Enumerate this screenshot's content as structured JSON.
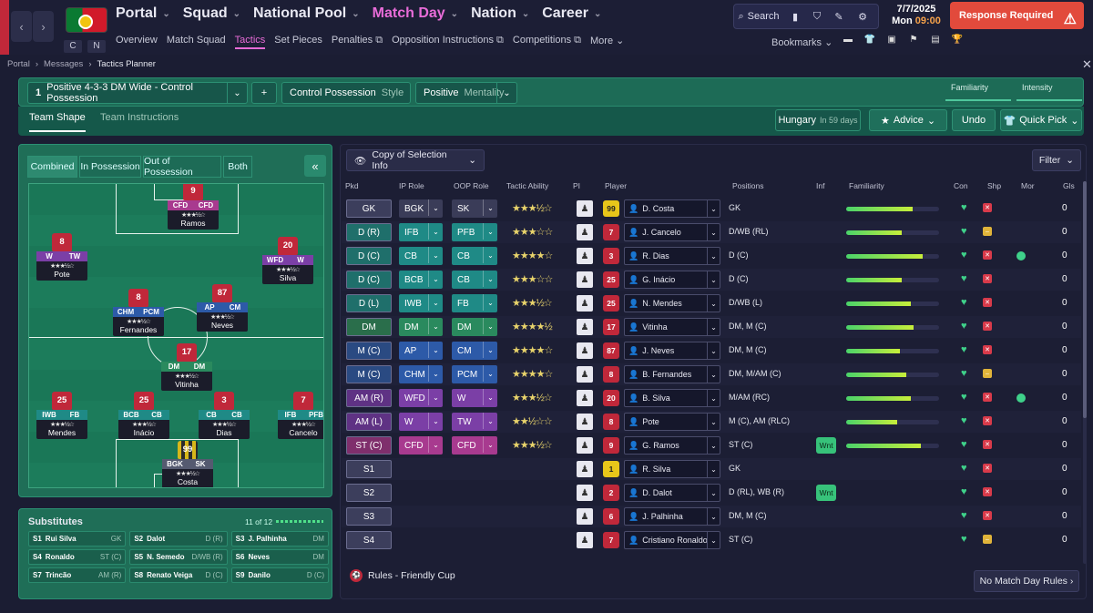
{
  "topbar": {
    "nav": [
      "Portal",
      "Squad",
      "National Pool",
      "Match Day",
      "Nation",
      "Career"
    ],
    "active_nav": "Match Day",
    "sub": [
      "Overview",
      "Match Squad",
      "Tactics",
      "Set Pieces",
      "Penalties",
      "Opposition Instructions",
      "Competitions",
      "More"
    ],
    "active_sub": "Tactics",
    "search": "Search",
    "date": "7/7/2025",
    "day": "Mon",
    "time": "09:00",
    "response": "Response Required",
    "bookmarks": "Bookmarks",
    "c": "C",
    "n": "N"
  },
  "breadcrumb": [
    "Portal",
    "Messages",
    "Tactics Planner"
  ],
  "tactic": {
    "num": "1",
    "name": "Positive 4-3-3 DM Wide - Control Possession",
    "style": "Control Possession",
    "style_lbl": "Style",
    "mentality": "Positive",
    "mentality_lbl": "Mentality",
    "familiarity": "Familiarity",
    "intensity": "Intensity",
    "plus": "+"
  },
  "tabs": {
    "shape": "Team Shape",
    "instructions": "Team Instructions"
  },
  "next": {
    "opp": "Hungary",
    "when": "In 59 days"
  },
  "buttons": {
    "advice": "Advice",
    "undo": "Undo",
    "quickpick": "Quick Pick",
    "filter": "Filter",
    "copy": "Copy of Selection Info",
    "nomd": "No Match Day Rules"
  },
  "pitch_tabs": [
    "Combined",
    "In Possession",
    "Out of Possession",
    "Both"
  ],
  "pitch_players": [
    {
      "num": "9",
      "r1": "CFD",
      "r2": "CFD",
      "name": "Ramos",
      "c1": "#a83a8f",
      "c2": "#a83a8f"
    },
    {
      "num": "8",
      "r1": "W",
      "r2": "TW",
      "name": "Pote",
      "c1": "#7b3fa6",
      "c2": "#7b3fa6"
    },
    {
      "num": "20",
      "r1": "WFD",
      "r2": "W",
      "name": "Silva",
      "c1": "#7b3fa6",
      "c2": "#7b3fa6"
    },
    {
      "num": "8",
      "r1": "CHM",
      "r2": "PCM",
      "name": "Fernandes",
      "c1": "#2d5aa8",
      "c2": "#2d5aa8"
    },
    {
      "num": "87",
      "r1": "AP",
      "r2": "CM",
      "name": "Neves",
      "c1": "#2d5aa8",
      "c2": "#2d5aa8"
    },
    {
      "num": "17",
      "r1": "DM",
      "r2": "DM",
      "name": "Vitinha",
      "c1": "#2a8a5e",
      "c2": "#2a8a5e"
    },
    {
      "num": "25",
      "r1": "IWB",
      "r2": "FB",
      "name": "Mendes",
      "c1": "#1f8a86",
      "c2": "#1f8a86"
    },
    {
      "num": "25",
      "r1": "BCB",
      "r2": "CB",
      "name": "Inácio",
      "c1": "#1f8a86",
      "c2": "#1f8a86"
    },
    {
      "num": "3",
      "r1": "CB",
      "r2": "CB",
      "name": "Dias",
      "c1": "#1f8a86",
      "c2": "#1f8a86"
    },
    {
      "num": "7",
      "r1": "IFB",
      "r2": "PFB",
      "name": "Cancelo",
      "c1": "#1f8a86",
      "c2": "#1f8a86"
    },
    {
      "num": "99",
      "r1": "BGK",
      "r2": "SK",
      "name": "Costa",
      "c1": "#555a70",
      "c2": "#555a70"
    }
  ],
  "subs": {
    "title": "Substitutes",
    "count": "11 of 12",
    "rows": [
      [
        {
          "n": "S1",
          "p": "Rui Silva",
          "pos": "GK"
        },
        {
          "n": "S2",
          "p": "Dalot",
          "pos": "D (R)"
        },
        {
          "n": "S3",
          "p": "J. Palhinha",
          "pos": "DM"
        }
      ],
      [
        {
          "n": "S4",
          "p": "Ronaldo",
          "pos": "ST (C)"
        },
        {
          "n": "S5",
          "p": "N. Semedo",
          "pos": "D/WB (R)"
        },
        {
          "n": "S6",
          "p": "Neves",
          "pos": "DM"
        }
      ],
      [
        {
          "n": "S7",
          "p": "Trincão",
          "pos": "AM (R)"
        },
        {
          "n": "S8",
          "p": "Renato Veiga",
          "pos": "D (C)"
        },
        {
          "n": "S9",
          "p": "Danilo",
          "pos": "D (C)"
        }
      ]
    ]
  },
  "columns": [
    "Pkd",
    "IP Role",
    "OOP Role",
    "Tactic Ability",
    "PI",
    "Player",
    "Positions",
    "Inf",
    "Familiarity",
    "Con",
    "Shp",
    "Mor",
    "Gls"
  ],
  "rows": [
    {
      "pkd": "GK",
      "ip": "BGK",
      "oop": "SK",
      "stars": "★★★½☆",
      "num": "99",
      "gk": true,
      "player": "D. Costa",
      "pos": "GK",
      "fam": 0.72,
      "shp": "x",
      "gls": "0",
      "color": "#3c3e5c",
      "ipc": "#3a3c58",
      "oopc": "#3a3c58"
    },
    {
      "pkd": "D (R)",
      "ip": "IFB",
      "oop": "PFB",
      "stars": "★★★☆☆",
      "num": "7",
      "player": "J. Cancelo",
      "pos": "D/WB (RL)",
      "fam": 0.6,
      "shp": "-",
      "gls": "0",
      "color": "#1f6f6b",
      "ipc": "#1f8a86",
      "oopc": "#1f8a86"
    },
    {
      "pkd": "D (C)",
      "ip": "CB",
      "oop": "CB",
      "stars": "★★★★☆",
      "num": "3",
      "player": "R. Dias",
      "pos": "D (C)",
      "fam": 0.82,
      "shp": "x",
      "mor": true,
      "gls": "0",
      "color": "#1f6f6b",
      "ipc": "#1f8a86",
      "oopc": "#1f8a86"
    },
    {
      "pkd": "D (C)",
      "ip": "BCB",
      "oop": "CB",
      "stars": "★★★☆☆",
      "num": "25",
      "player": "G. Inácio",
      "pos": "D (C)",
      "fam": 0.6,
      "shp": "x",
      "gls": "0",
      "color": "#1f6f6b",
      "ipc": "#1f8a86",
      "oopc": "#1f8a86"
    },
    {
      "pkd": "D (L)",
      "ip": "IWB",
      "oop": "FB",
      "stars": "★★★½☆",
      "num": "25",
      "player": "N. Mendes",
      "pos": "D/WB (L)",
      "fam": 0.7,
      "shp": "x",
      "gls": "0",
      "color": "#1f6f6b",
      "ipc": "#1f8a86",
      "oopc": "#1f8a86"
    },
    {
      "pkd": "DM",
      "ip": "DM",
      "oop": "DM",
      "stars": "★★★★½",
      "num": "17",
      "player": "Vitinha",
      "pos": "DM, M (C)",
      "fam": 0.73,
      "shp": "x",
      "gls": "0",
      "color": "#2a6e4b",
      "ipc": "#2a8a5e",
      "oopc": "#2a8a5e"
    },
    {
      "pkd": "M (C)",
      "ip": "AP",
      "oop": "CM",
      "stars": "★★★★☆",
      "num": "87",
      "player": "J. Neves",
      "pos": "DM, M (C)",
      "fam": 0.58,
      "shp": "x",
      "gls": "0",
      "color": "#2a4a82",
      "ipc": "#2d5aa8",
      "oopc": "#2d5aa8"
    },
    {
      "pkd": "M (C)",
      "ip": "CHM",
      "oop": "PCM",
      "stars": "★★★★☆",
      "num": "8",
      "player": "B. Fernandes",
      "pos": "DM, M/AM (C)",
      "fam": 0.65,
      "shp": "-",
      "gls": "0",
      "color": "#2a4a82",
      "ipc": "#2d5aa8",
      "oopc": "#2d5aa8"
    },
    {
      "pkd": "AM (R)",
      "ip": "WFD",
      "oop": "W",
      "stars": "★★★½☆",
      "num": "20",
      "player": "B. Silva",
      "pos": "M/AM (RC)",
      "fam": 0.7,
      "shp": "x",
      "mor": true,
      "gls": "0",
      "color": "#5f3284",
      "ipc": "#7b3fa6",
      "oopc": "#7b3fa6"
    },
    {
      "pkd": "AM (L)",
      "ip": "W",
      "oop": "TW",
      "stars": "★★½☆☆",
      "num": "8",
      "player": "Pote",
      "pos": "M (C), AM (RLC)",
      "fam": 0.55,
      "shp": "x",
      "gls": "0",
      "color": "#5f3284",
      "ipc": "#7b3fa6",
      "oopc": "#7b3fa6"
    },
    {
      "pkd": "ST (C)",
      "ip": "CFD",
      "oop": "CFD",
      "stars": "★★★½☆",
      "num": "9",
      "player": "G. Ramos",
      "pos": "ST (C)",
      "inf": "Wnt",
      "fam": 0.8,
      "shp": "x",
      "gls": "0",
      "color": "#7f2f6c",
      "ipc": "#a83a8f",
      "oopc": "#a83a8f"
    },
    {
      "pkd": "S1",
      "num": "1",
      "gk": true,
      "player": "R. Silva",
      "pos": "GK",
      "fam": 0,
      "shp": "x",
      "gls": "0",
      "color": "#3c3e5c"
    },
    {
      "pkd": "S2",
      "num": "2",
      "player": "D. Dalot",
      "pos": "D (RL), WB (R)",
      "inf": "Wnt",
      "fam": 0,
      "shp": "x",
      "gls": "0",
      "color": "#3c3e5c"
    },
    {
      "pkd": "S3",
      "num": "6",
      "player": "J. Palhinha",
      "pos": "DM, M (C)",
      "fam": 0,
      "shp": "x",
      "gls": "0",
      "color": "#3c3e5c"
    },
    {
      "pkd": "S4",
      "num": "7",
      "player": "Cristiano Ronaldo",
      "pos": "ST (C)",
      "fam": 0,
      "shp": "-",
      "gls": "0",
      "color": "#3c3e5c"
    }
  ],
  "rules": "Rules - Friendly Cup"
}
